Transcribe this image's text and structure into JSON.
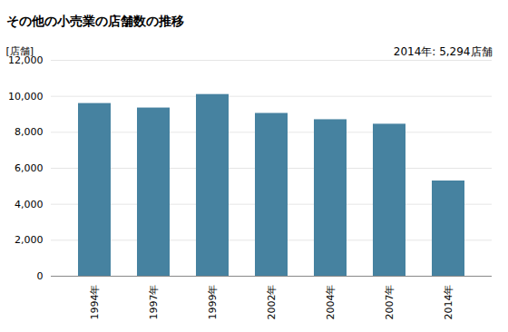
{
  "chart_data": {
    "type": "bar",
    "title": "その他の小売業の店舗数の推移",
    "ylabel": "[店舗]",
    "annotation": "2014年: 5,294店舗",
    "categories": [
      "1994年",
      "1997年",
      "1999年",
      "2002年",
      "2004年",
      "2007年",
      "2014年"
    ],
    "values": [
      9600,
      9350,
      10100,
      9050,
      8700,
      8450,
      5294
    ],
    "color": "#4682a0",
    "ylim": [
      0,
      12000
    ],
    "yticks": [
      0,
      {
        "value": 2000,
        "label": "2,000"
      },
      {
        "value": 4000,
        "label": "4,000"
      },
      {
        "value": 6000,
        "label": "6,000"
      },
      {
        "value": 8000,
        "label": "8,000"
      },
      {
        "value": 10000,
        "label": "10,000"
      },
      {
        "value": 12000,
        "label": "12,000"
      }
    ],
    "grid": true
  }
}
